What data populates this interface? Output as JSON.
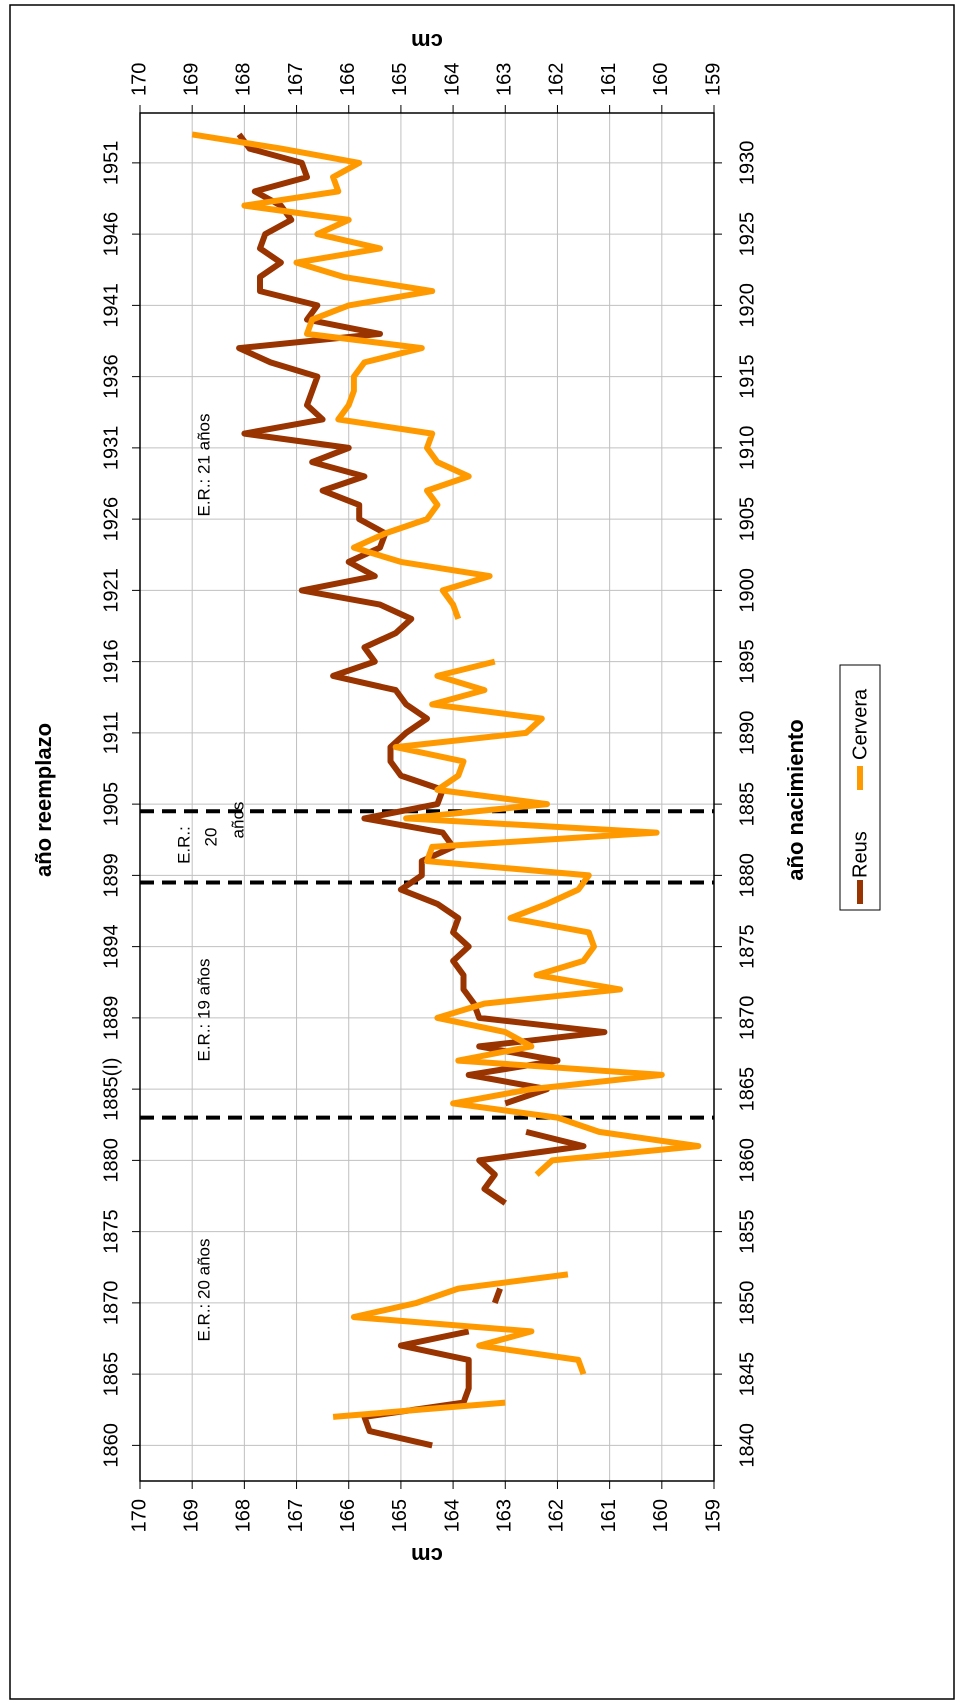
{
  "chart_data": {
    "type": "line",
    "title": "año reemplazo",
    "x_label": "año nacimiento",
    "y_label": "cm",
    "y2_label": "cm",
    "x": [
      1840,
      1841,
      1842,
      1843,
      1844,
      1845,
      1846,
      1847,
      1848,
      1849,
      1850,
      1851,
      1852,
      1853,
      1854,
      1855,
      1856,
      1857,
      1858,
      1859,
      1860,
      1861,
      1862,
      1863,
      1864,
      1865,
      1866,
      1867,
      1868,
      1869,
      1870,
      1871,
      1872,
      1873,
      1874,
      1875,
      1876,
      1877,
      1878,
      1879,
      1880,
      1881,
      1882,
      1883,
      1884,
      1885,
      1886,
      1887,
      1888,
      1889,
      1890,
      1891,
      1892,
      1893,
      1894,
      1895,
      1896,
      1897,
      1898,
      1899,
      1900,
      1901,
      1902,
      1903,
      1904,
      1905,
      1906,
      1907,
      1908,
      1909,
      1910,
      1911,
      1912,
      1913,
      1914,
      1915,
      1916,
      1917,
      1918,
      1919,
      1920,
      1921,
      1922,
      1923,
      1924,
      1925,
      1926,
      1927,
      1928,
      1929,
      1930,
      1931,
      1932
    ],
    "series": [
      {
        "name": "Reus",
        "color": "#993300",
        "values": [
          164.4,
          165.6,
          165.7,
          163.8,
          163.7,
          163.7,
          163.7,
          165.0,
          163.7,
          null,
          163.2,
          163.1,
          null,
          null,
          null,
          null,
          null,
          163.0,
          163.4,
          163.2,
          163.5,
          161.5,
          162.6,
          null,
          163.0,
          162.2,
          163.7,
          162.0,
          163.5,
          161.1,
          163.5,
          163.6,
          163.8,
          163.8,
          164.0,
          163.7,
          164.0,
          163.9,
          164.3,
          165.0,
          164.6,
          164.6,
          164.0,
          164.2,
          165.7,
          164.3,
          164.2,
          165.0,
          165.2,
          165.2,
          164.9,
          164.5,
          164.9,
          165.1,
          166.3,
          165.5,
          165.7,
          165.1,
          164.8,
          165.4,
          166.9,
          165.5,
          166.0,
          165.4,
          165.3,
          165.8,
          165.8,
          166.5,
          165.7,
          166.7,
          166.0,
          168.0,
          166.5,
          166.8,
          166.7,
          166.6,
          167.5,
          168.1,
          165.4,
          166.8,
          166.6,
          167.7,
          167.7,
          167.3,
          167.7,
          167.6,
          167.1,
          167.3,
          167.8,
          166.8,
          166.9,
          167.9,
          168.1
        ]
      },
      {
        "name": "Cervera",
        "color": "#ff9900",
        "values": [
          null,
          null,
          166.3,
          163.0,
          null,
          161.5,
          161.6,
          163.5,
          162.5,
          165.9,
          164.7,
          163.9,
          161.8,
          null,
          null,
          null,
          null,
          null,
          null,
          162.4,
          162.1,
          159.3,
          161.2,
          162.0,
          164.0,
          162.5,
          160.0,
          163.9,
          162.5,
          163.0,
          164.3,
          163.4,
          160.8,
          162.4,
          161.5,
          161.3,
          161.4,
          162.9,
          162.2,
          161.6,
          161.4,
          164.5,
          164.4,
          160.1,
          164.9,
          162.2,
          164.3,
          163.9,
          163.8,
          165.1,
          162.6,
          162.3,
          164.4,
          163.4,
          164.3,
          163.2,
          null,
          null,
          163.9,
          164.0,
          164.2,
          163.3,
          165.0,
          165.9,
          165.3,
          164.5,
          164.3,
          164.5,
          163.7,
          164.3,
          164.5,
          164.4,
          166.2,
          166.0,
          165.9,
          165.9,
          165.7,
          164.6,
          166.8,
          166.7,
          166.0,
          164.4,
          166.1,
          167.0,
          165.4,
          166.6,
          166.0,
          168.0,
          166.2,
          166.3,
          165.8,
          167.3,
          169.0
        ]
      }
    ],
    "xlim": [
      1837.5,
      1933.5
    ],
    "xticks": [
      1840,
      1845,
      1850,
      1855,
      1860,
      1865,
      1870,
      1875,
      1880,
      1885,
      1890,
      1895,
      1900,
      1905,
      1910,
      1915,
      1920,
      1925,
      1930
    ],
    "x2ticks": [
      {
        "value": 1840,
        "label": "1860"
      },
      {
        "value": 1845,
        "label": "1865"
      },
      {
        "value": 1850,
        "label": "1870"
      },
      {
        "value": 1855,
        "label": "1875"
      },
      {
        "value": 1860,
        "label": "1880"
      },
      {
        "value": 1865,
        "label": "1885(I)"
      },
      {
        "value": 1870,
        "label": "1889"
      },
      {
        "value": 1875,
        "label": "1894"
      },
      {
        "value": 1880,
        "label": "1899"
      },
      {
        "value": 1885,
        "label": "1905"
      },
      {
        "value": 1890,
        "label": "1911"
      },
      {
        "value": 1895,
        "label": "1916"
      },
      {
        "value": 1900,
        "label": "1921"
      },
      {
        "value": 1905,
        "label": "1926"
      },
      {
        "value": 1910,
        "label": "1931"
      },
      {
        "value": 1915,
        "label": "1936"
      },
      {
        "value": 1920,
        "label": "1941"
      },
      {
        "value": 1925,
        "label": "1946"
      },
      {
        "value": 1930,
        "label": "1951"
      }
    ],
    "ylim": [
      159,
      170
    ],
    "yticks": [
      159,
      160,
      161,
      162,
      163,
      164,
      165,
      166,
      167,
      168,
      169,
      170
    ],
    "y2lim": [
      159,
      170
    ],
    "y2ticks": [
      159,
      160,
      161,
      162,
      163,
      164,
      165,
      166,
      167,
      168,
      169,
      170
    ],
    "reference_lines": [
      1863,
      1879.5,
      1884.5
    ],
    "annotations": [
      "E.R.: 20 años",
      "E.R.: 19 años",
      [
        "E.R.:",
        "20",
        "años"
      ],
      "E.R.: 21 años"
    ],
    "grid": true
  }
}
